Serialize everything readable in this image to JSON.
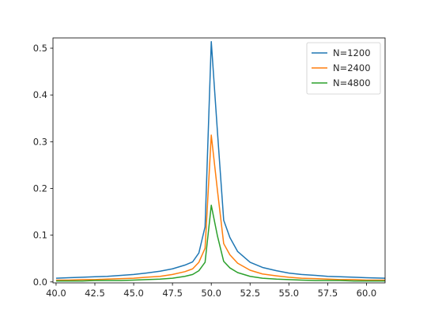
{
  "chart_data": {
    "type": "line",
    "title": "",
    "xlabel": "",
    "ylabel": "",
    "xlim": [
      39.8,
      61.2
    ],
    "ylim": [
      -0.002,
      0.522
    ],
    "x_ticks": [
      40.0,
      42.5,
      45.0,
      47.5,
      50.0,
      52.5,
      55.0,
      57.5,
      60.0
    ],
    "x_tick_labels": [
      "40.0",
      "42.5",
      "45.0",
      "47.5",
      "50.0",
      "52.5",
      "55.0",
      "57.5",
      "60.0"
    ],
    "y_ticks": [
      0.0,
      0.1,
      0.2,
      0.3,
      0.4,
      0.5
    ],
    "y_tick_labels": [
      "0.0",
      "0.1",
      "0.2",
      "0.3",
      "0.4",
      "0.5"
    ],
    "grid": false,
    "legend_position": "top-right",
    "x": [
      40.0,
      40.8,
      41.7,
      42.5,
      43.3,
      44.2,
      45.0,
      45.8,
      46.7,
      47.5,
      48.3,
      48.8,
      49.2,
      49.6,
      50.0,
      50.4,
      50.8,
      51.2,
      51.7,
      52.5,
      53.3,
      54.2,
      55.0,
      55.8,
      56.7,
      57.5,
      58.3,
      59.2,
      60.0,
      61.2
    ],
    "series": [
      {
        "name": "N=1200",
        "color": "#1f77b4",
        "values": [
          0.008,
          0.009,
          0.01,
          0.011,
          0.012,
          0.014,
          0.016,
          0.019,
          0.023,
          0.028,
          0.036,
          0.043,
          0.062,
          0.118,
          0.514,
          0.32,
          0.132,
          0.095,
          0.065,
          0.042,
          0.031,
          0.024,
          0.019,
          0.016,
          0.014,
          0.012,
          0.011,
          0.01,
          0.009,
          0.008
        ]
      },
      {
        "name": "N=2400",
        "color": "#ff7f0e",
        "values": [
          0.004,
          0.004,
          0.005,
          0.005,
          0.006,
          0.007,
          0.008,
          0.01,
          0.012,
          0.016,
          0.022,
          0.028,
          0.042,
          0.072,
          0.314,
          0.195,
          0.082,
          0.058,
          0.04,
          0.025,
          0.017,
          0.013,
          0.01,
          0.008,
          0.007,
          0.006,
          0.005,
          0.005,
          0.004,
          0.004
        ]
      },
      {
        "name": "N=4800",
        "color": "#2ca02c",
        "values": [
          0.002,
          0.002,
          0.002,
          0.003,
          0.003,
          0.003,
          0.004,
          0.005,
          0.006,
          0.008,
          0.012,
          0.016,
          0.024,
          0.042,
          0.164,
          0.098,
          0.044,
          0.03,
          0.02,
          0.012,
          0.008,
          0.006,
          0.005,
          0.004,
          0.003,
          0.003,
          0.003,
          0.002,
          0.002,
          0.002
        ]
      }
    ]
  }
}
